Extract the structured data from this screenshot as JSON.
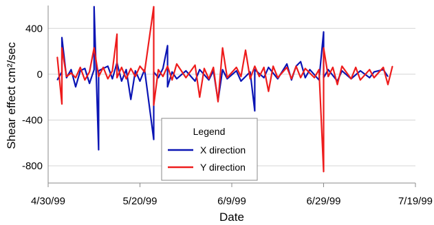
{
  "chart_data": {
    "type": "line",
    "title": "",
    "xlabel": "Date",
    "ylabel": "Shear effect cm²/sec",
    "x_ticks": [
      "4/30/99",
      "5/20/99",
      "6/9/99",
      "6/29/99",
      "7/19/99"
    ],
    "y_ticks": [
      400,
      0,
      -400,
      -800
    ],
    "xlim": [
      "1999-04-30",
      "1999-07-19"
    ],
    "ylim": [
      -950,
      600
    ],
    "grid": "horizontal",
    "legend": {
      "title": "Legend",
      "placement": "bottom-center",
      "entries": [
        "X direction",
        "Y direction"
      ]
    },
    "series": [
      {
        "name": "X direction",
        "color": "#0a14b4",
        "points": [
          [
            "1999-05-02",
            -50
          ],
          [
            "1999-05-03",
            20
          ],
          [
            "1999-05-03",
            320
          ],
          [
            "1999-05-04",
            -30
          ],
          [
            "1999-05-05",
            40
          ],
          [
            "1999-05-06",
            -110
          ],
          [
            "1999-05-07",
            30
          ],
          [
            "1999-05-08",
            50
          ],
          [
            "1999-05-09",
            -80
          ],
          [
            "1999-05-10",
            40
          ],
          [
            "1999-05-10",
            590
          ],
          [
            "1999-05-11",
            -660
          ],
          [
            "1999-05-11",
            30
          ],
          [
            "1999-05-12",
            50
          ],
          [
            "1999-05-13",
            70
          ],
          [
            "1999-05-14",
            -40
          ],
          [
            "1999-05-15",
            100
          ],
          [
            "1999-05-16",
            -60
          ],
          [
            "1999-05-17",
            40
          ],
          [
            "1999-05-18",
            -220
          ],
          [
            "1999-05-19",
            30
          ],
          [
            "1999-05-20",
            -60
          ],
          [
            "1999-05-21",
            40
          ],
          [
            "1999-05-23",
            -570
          ],
          [
            "1999-05-23",
            20
          ],
          [
            "1999-05-24",
            -30
          ],
          [
            "1999-05-25",
            50
          ],
          [
            "1999-05-26",
            250
          ],
          [
            "1999-05-26",
            -110
          ],
          [
            "1999-05-27",
            20
          ],
          [
            "1999-05-28",
            -40
          ],
          [
            "1999-05-30",
            30
          ],
          [
            "1999-06-01",
            -60
          ],
          [
            "1999-06-02",
            40
          ],
          [
            "1999-06-04",
            -50
          ],
          [
            "1999-06-05",
            30
          ],
          [
            "1999-06-06",
            -230
          ],
          [
            "1999-06-07",
            40
          ],
          [
            "1999-06-08",
            -40
          ],
          [
            "1999-06-10",
            30
          ],
          [
            "1999-06-11",
            -60
          ],
          [
            "1999-06-13",
            20
          ],
          [
            "1999-06-14",
            -320
          ],
          [
            "1999-06-14",
            40
          ],
          [
            "1999-06-16",
            -30
          ],
          [
            "1999-06-17",
            60
          ],
          [
            "1999-06-19",
            -40
          ],
          [
            "1999-06-21",
            90
          ],
          [
            "1999-06-22",
            -50
          ],
          [
            "1999-06-23",
            70
          ],
          [
            "1999-06-24",
            110
          ],
          [
            "1999-06-25",
            -30
          ],
          [
            "1999-06-26",
            40
          ],
          [
            "1999-06-28",
            -50
          ],
          [
            "1999-06-29",
            370
          ],
          [
            "1999-06-29",
            -30
          ],
          [
            "1999-06-30",
            40
          ],
          [
            "1999-07-02",
            -60
          ],
          [
            "1999-07-03",
            30
          ],
          [
            "1999-07-05",
            -40
          ],
          [
            "1999-07-07",
            30
          ],
          [
            "1999-07-09",
            -30
          ],
          [
            "1999-07-10",
            20
          ],
          [
            "1999-07-12",
            40
          ],
          [
            "1999-07-13",
            -20
          ]
        ]
      },
      {
        "name": "Y direction",
        "color": "#ee1c1c",
        "points": [
          [
            "1999-05-02",
            150
          ],
          [
            "1999-05-03",
            -260
          ],
          [
            "1999-05-03",
            230
          ],
          [
            "1999-05-04",
            -20
          ],
          [
            "1999-05-05",
            10
          ],
          [
            "1999-05-06",
            -30
          ],
          [
            "1999-05-07",
            60
          ],
          [
            "1999-05-08",
            -50
          ],
          [
            "1999-05-09",
            20
          ],
          [
            "1999-05-10",
            230
          ],
          [
            "1999-05-11",
            -20
          ],
          [
            "1999-05-12",
            60
          ],
          [
            "1999-05-13",
            -40
          ],
          [
            "1999-05-14",
            30
          ],
          [
            "1999-05-15",
            350
          ],
          [
            "1999-05-15",
            -30
          ],
          [
            "1999-05-16",
            60
          ],
          [
            "1999-05-17",
            -40
          ],
          [
            "1999-05-18",
            50
          ],
          [
            "1999-05-19",
            -20
          ],
          [
            "1999-05-20",
            70
          ],
          [
            "1999-05-21",
            20
          ],
          [
            "1999-05-23",
            590
          ],
          [
            "1999-05-23",
            -270
          ],
          [
            "1999-05-24",
            40
          ],
          [
            "1999-05-25",
            -20
          ],
          [
            "1999-05-26",
            70
          ],
          [
            "1999-05-27",
            -50
          ],
          [
            "1999-05-28",
            90
          ],
          [
            "1999-05-30",
            -30
          ],
          [
            "1999-06-01",
            80
          ],
          [
            "1999-06-02",
            -200
          ],
          [
            "1999-06-03",
            50
          ],
          [
            "1999-06-04",
            -40
          ],
          [
            "1999-06-05",
            60
          ],
          [
            "1999-06-06",
            -240
          ],
          [
            "1999-06-07",
            230
          ],
          [
            "1999-06-08",
            -30
          ],
          [
            "1999-06-10",
            60
          ],
          [
            "1999-06-11",
            -20
          ],
          [
            "1999-06-12",
            210
          ],
          [
            "1999-06-13",
            -40
          ],
          [
            "1999-06-14",
            70
          ],
          [
            "1999-06-15",
            -20
          ],
          [
            "1999-06-16",
            60
          ],
          [
            "1999-06-17",
            -150
          ],
          [
            "1999-06-18",
            70
          ],
          [
            "1999-06-19",
            -30
          ],
          [
            "1999-06-21",
            60
          ],
          [
            "1999-06-22",
            -40
          ],
          [
            "1999-06-23",
            70
          ],
          [
            "1999-06-24",
            -30
          ],
          [
            "1999-06-25",
            50
          ],
          [
            "1999-06-27",
            -30
          ],
          [
            "1999-06-28",
            40
          ],
          [
            "1999-06-29",
            -850
          ],
          [
            "1999-06-29",
            230
          ],
          [
            "1999-06-30",
            -20
          ],
          [
            "1999-07-01",
            60
          ],
          [
            "1999-07-02",
            -90
          ],
          [
            "1999-07-03",
            70
          ],
          [
            "1999-07-05",
            -40
          ],
          [
            "1999-07-06",
            60
          ],
          [
            "1999-07-07",
            -50
          ],
          [
            "1999-07-09",
            40
          ],
          [
            "1999-07-10",
            -30
          ],
          [
            "1999-07-12",
            60
          ],
          [
            "1999-07-13",
            -90
          ],
          [
            "1999-07-14",
            70
          ]
        ]
      }
    ]
  }
}
